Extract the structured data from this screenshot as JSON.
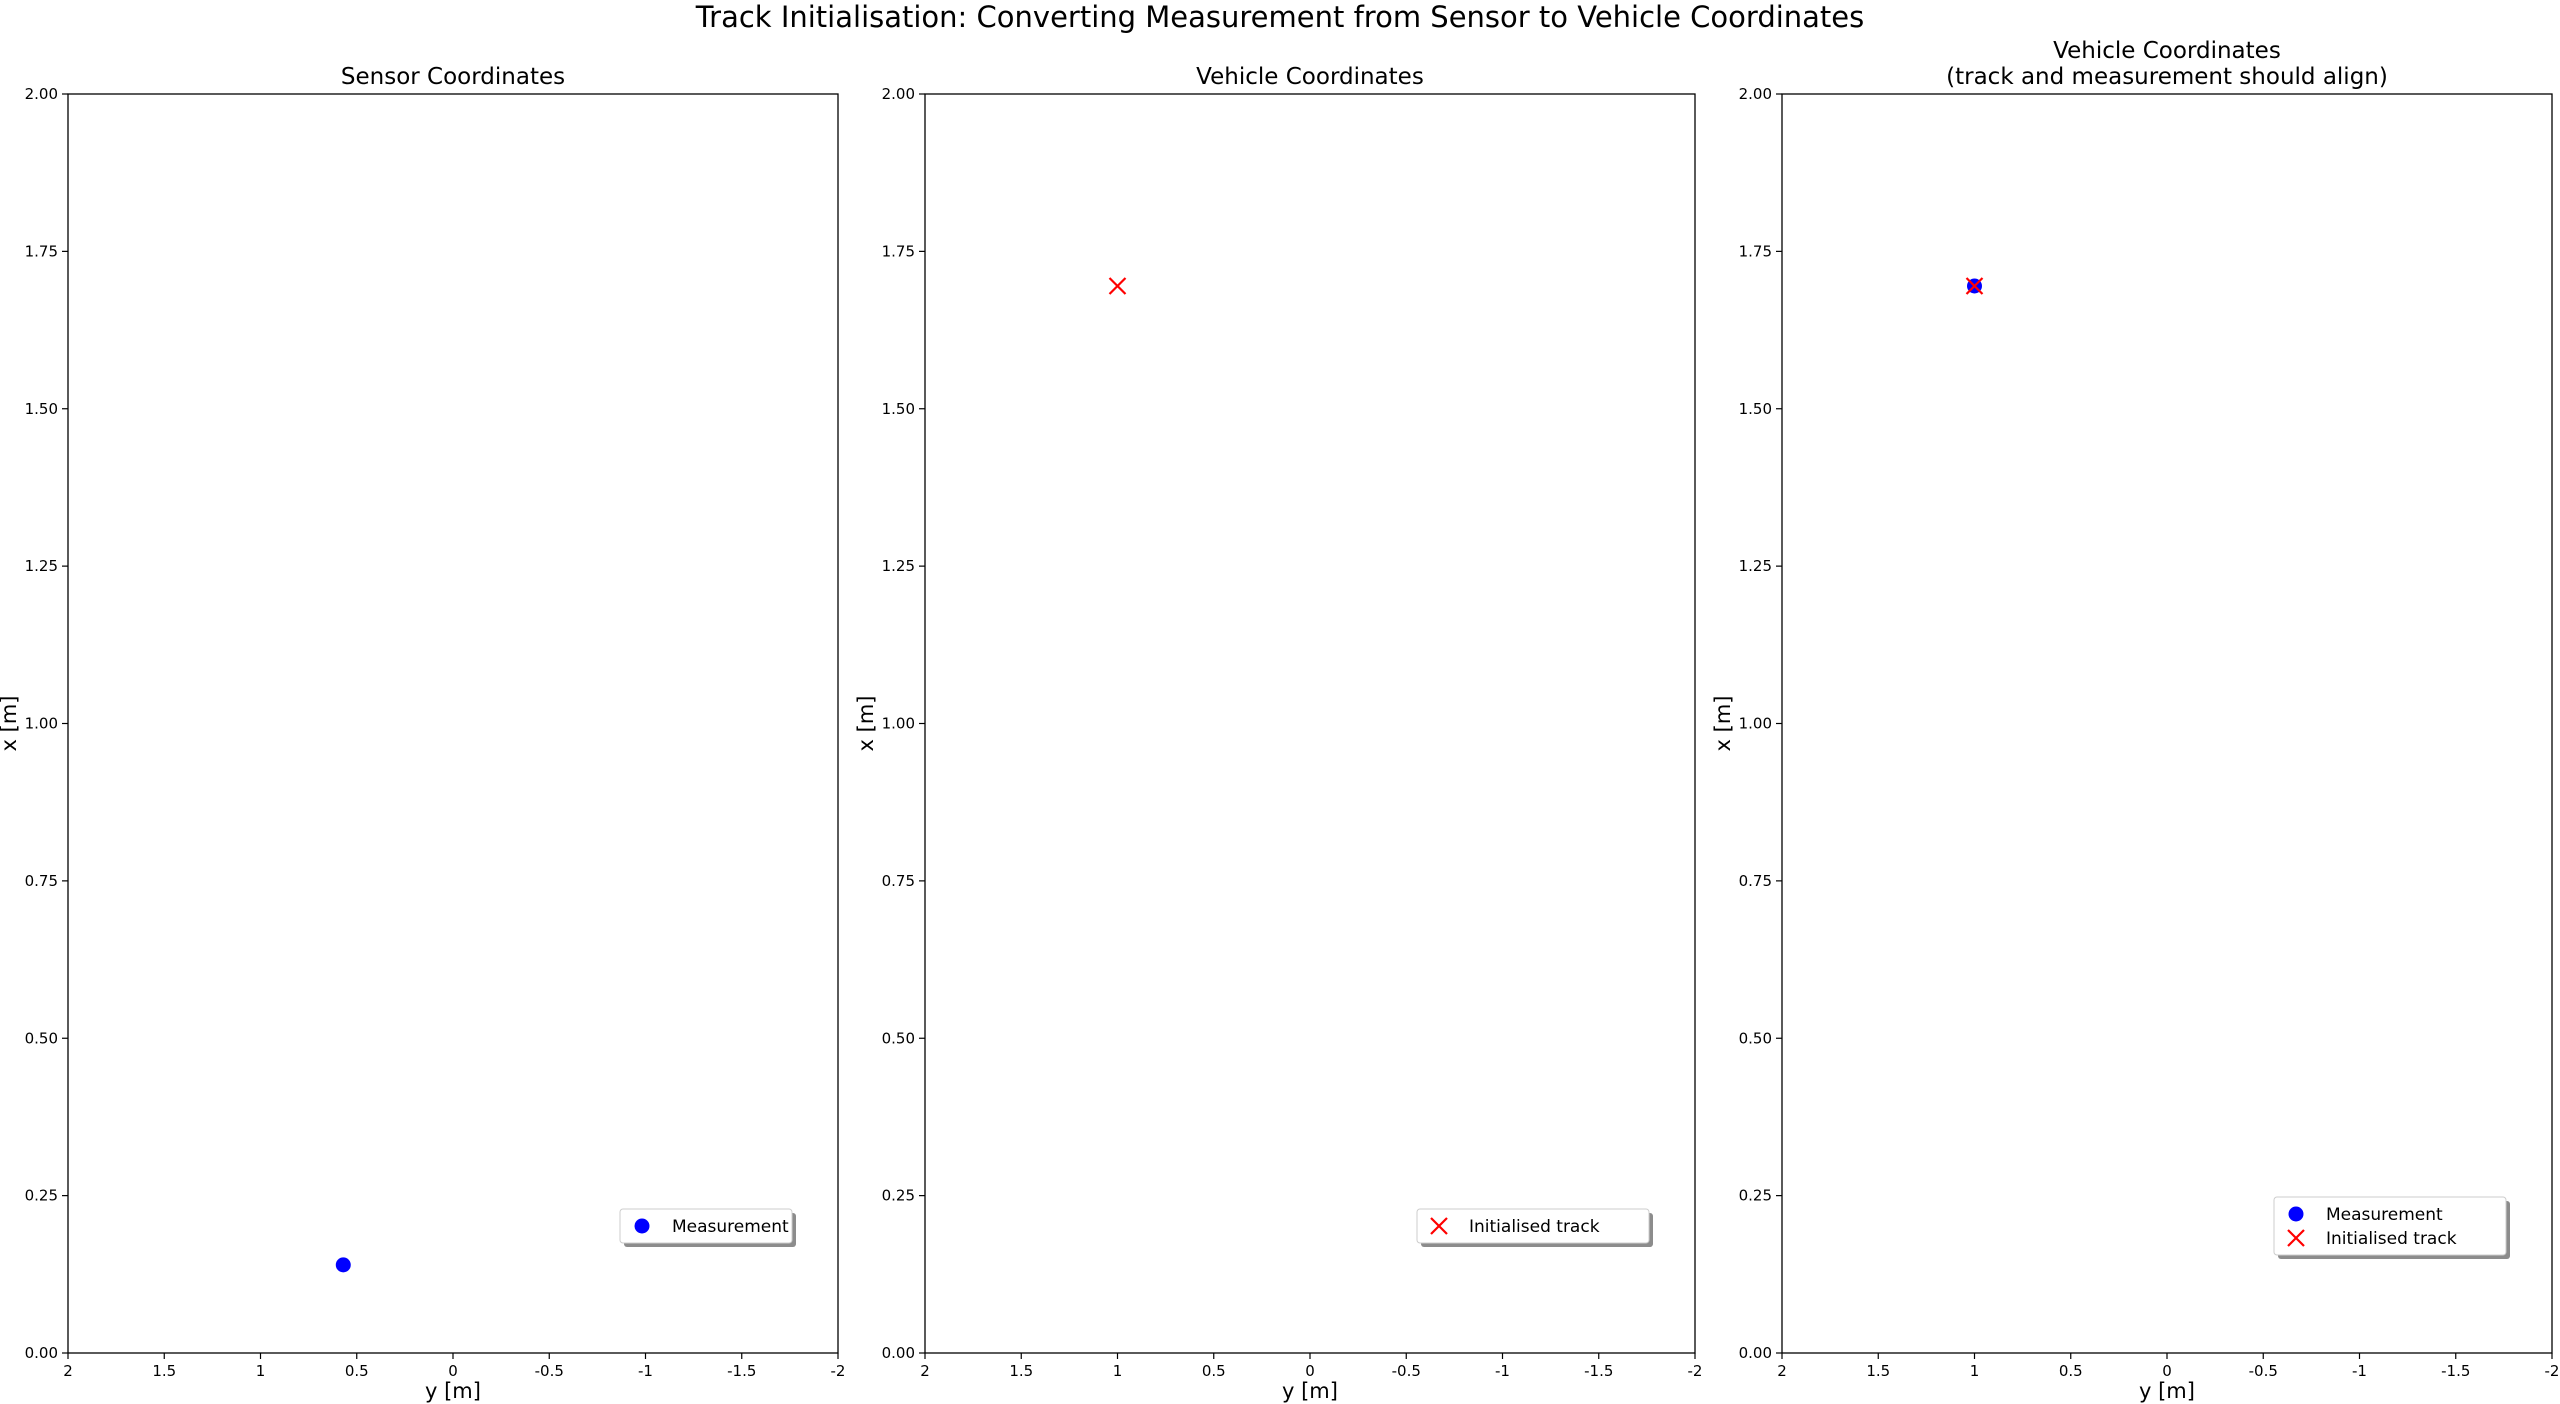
{
  "figure": {
    "suptitle": "Track Initialisation: Converting Measurement from Sensor to Vehicle Coordinates"
  },
  "chart_data": [
    {
      "type": "scatter",
      "title": "Sensor Coordinates",
      "title_line2": "",
      "xlabel": "y [m]",
      "ylabel": "x [m]",
      "xlim": [
        2,
        -2
      ],
      "ylim": [
        0,
        2
      ],
      "x_ticks": [
        2,
        1.5,
        1,
        0.5,
        0,
        -0.5,
        -1,
        -1.5,
        -2
      ],
      "x_tick_labels": [
        "2",
        "1.5",
        "1",
        "0.5",
        "0",
        "-0.5",
        "-1",
        "-1.5",
        "-2"
      ],
      "y_ticks": [
        0,
        0.25,
        0.5,
        0.75,
        1,
        1.25,
        1.5,
        1.75,
        2
      ],
      "y_tick_labels": [
        "0.00",
        "0.25",
        "0.50",
        "0.75",
        "1.00",
        "1.25",
        "1.50",
        "1.75",
        "2.00"
      ],
      "grid": false,
      "legend": {
        "placement": "lower-right"
      },
      "series": [
        {
          "name": "Measurement",
          "marker": "circle",
          "color": "#0000ff",
          "points": [
            {
              "x": 0.57,
              "y": 0.14
            }
          ]
        }
      ]
    },
    {
      "type": "scatter",
      "title": "Vehicle Coordinates",
      "title_line2": "",
      "xlabel": "y [m]",
      "ylabel": "x [m]",
      "xlim": [
        2,
        -2
      ],
      "ylim": [
        0,
        2
      ],
      "x_ticks": [
        2,
        1.5,
        1,
        0.5,
        0,
        -0.5,
        -1,
        -1.5,
        -2
      ],
      "x_tick_labels": [
        "2",
        "1.5",
        "1",
        "0.5",
        "0",
        "-0.5",
        "-1",
        "-1.5",
        "-2"
      ],
      "y_ticks": [
        0,
        0.25,
        0.5,
        0.75,
        1,
        1.25,
        1.5,
        1.75,
        2
      ],
      "y_tick_labels": [
        "0.00",
        "0.25",
        "0.50",
        "0.75",
        "1.00",
        "1.25",
        "1.50",
        "1.75",
        "2.00"
      ],
      "grid": false,
      "legend": {
        "placement": "lower-right"
      },
      "series": [
        {
          "name": "Initialised track",
          "marker": "x",
          "color": "#ff0000",
          "points": [
            {
              "x": 1.0,
              "y": 1.695
            }
          ]
        }
      ]
    },
    {
      "type": "scatter",
      "title": "Vehicle Coordinates",
      "title_line2": "(track and measurement should align)",
      "xlabel": "y [m]",
      "ylabel": "x [m]",
      "xlim": [
        2,
        -2
      ],
      "ylim": [
        0,
        2
      ],
      "x_ticks": [
        2,
        1.5,
        1,
        0.5,
        0,
        -0.5,
        -1,
        -1.5,
        -2
      ],
      "x_tick_labels": [
        "2",
        "1.5",
        "1",
        "0.5",
        "0",
        "-0.5",
        "-1",
        "-1.5",
        "-2"
      ],
      "y_ticks": [
        0,
        0.25,
        0.5,
        0.75,
        1,
        1.25,
        1.5,
        1.75,
        2
      ],
      "y_tick_labels": [
        "0.00",
        "0.25",
        "0.50",
        "0.75",
        "1.00",
        "1.25",
        "1.50",
        "1.75",
        "2.00"
      ],
      "grid": false,
      "legend": {
        "placement": "lower-right"
      },
      "series": [
        {
          "name": "Measurement",
          "marker": "circle",
          "color": "#0000ff",
          "points": [
            {
              "x": 1.0,
              "y": 1.695
            }
          ]
        },
        {
          "name": "Initialised track",
          "marker": "x",
          "color": "#ff0000",
          "points": [
            {
              "x": 1.0,
              "y": 1.695
            }
          ]
        }
      ]
    }
  ]
}
